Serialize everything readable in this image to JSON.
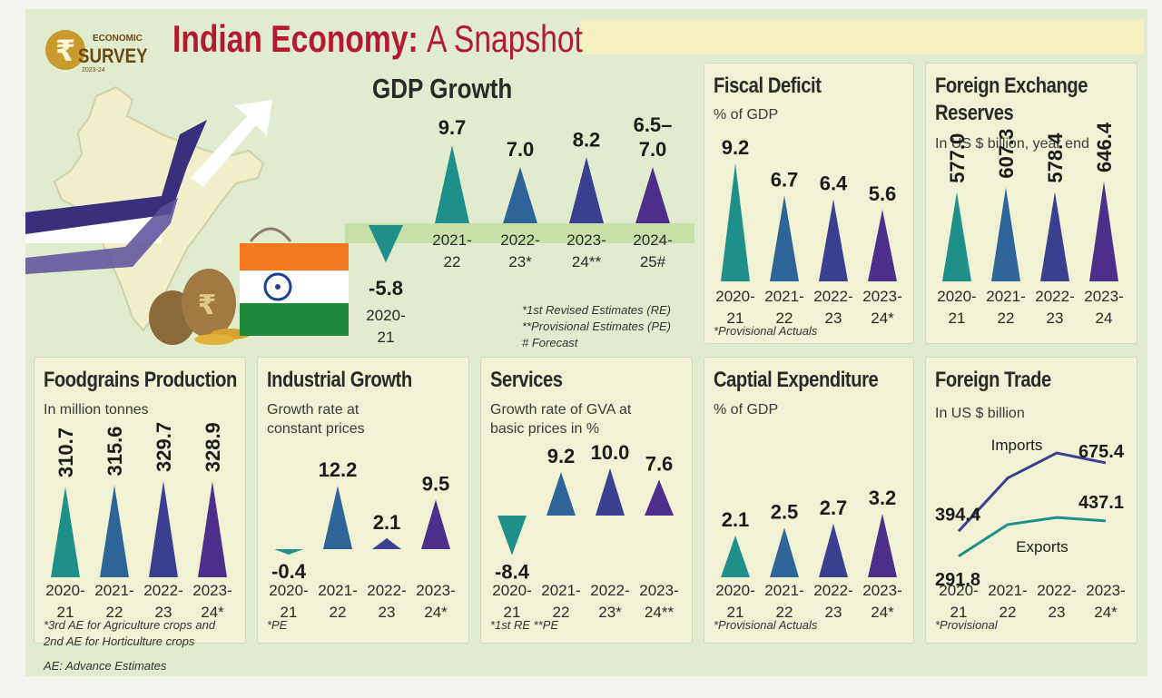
{
  "header": {
    "title_main": "Indian Economy:",
    "title_light": "A Snapshot",
    "logo_line1": "ECONOMIC",
    "logo_line2": "SURVEY",
    "logo_line3": "2023-24"
  },
  "colors": {
    "teal": "#1f8f8a",
    "blue": "#2d6598",
    "indigo": "#3a3f8f",
    "purple": "#4c2f8a",
    "title_red": "#b31a2e"
  },
  "gdp": {
    "title": "GDP Growth",
    "notes": [
      "*1st Revised Estimates (RE)",
      "**Provisional Estimates (PE)",
      "# Forecast"
    ],
    "chart_data": {
      "type": "bar",
      "title": "GDP Growth",
      "categories": [
        [
          "2020-",
          "21"
        ],
        [
          "2021-",
          "22"
        ],
        [
          "2022-",
          "23*"
        ],
        [
          "2023-",
          "24**"
        ],
        [
          "2024-",
          "25#"
        ]
      ],
      "values": [
        -5.8,
        9.7,
        7.0,
        8.2,
        7.0
      ],
      "labels": [
        [
          "-5.8"
        ],
        [
          "9.7"
        ],
        [
          "7.0"
        ],
        [
          "8.2"
        ],
        [
          "6.5–",
          "7.0"
        ]
      ]
    }
  },
  "fiscal": {
    "title": "Fiscal Deficit",
    "subtitle": [
      "% of GDP"
    ],
    "note": [
      "*Provisional Actuals"
    ],
    "chart_data": {
      "type": "bar",
      "title": "Fiscal Deficit",
      "categories": [
        [
          "2020-",
          "21"
        ],
        [
          "2021-",
          "22"
        ],
        [
          "2022-",
          "23"
        ],
        [
          "2023-",
          "24*"
        ]
      ],
      "values": [
        9.2,
        6.7,
        6.4,
        5.6
      ],
      "labels": [
        [
          "9.2"
        ],
        [
          "6.7"
        ],
        [
          "6.4"
        ],
        [
          "5.6"
        ]
      ]
    }
  },
  "forex": {
    "title": [
      "Foreign Exchange",
      "Reserves"
    ],
    "subtitle": [
      "In US $ billion, year end"
    ],
    "chart_data": {
      "type": "bar",
      "title": "Foreign Exchange Reserves",
      "categories": [
        [
          "2020-",
          "21"
        ],
        [
          "2021-",
          "22"
        ],
        [
          "2022-",
          "23"
        ],
        [
          "2023-",
          "24"
        ]
      ],
      "values": [
        577.0,
        607.3,
        578.4,
        646.4
      ],
      "labels": [
        [
          "577.0"
        ],
        [
          "607.3"
        ],
        [
          "578.4"
        ],
        [
          "646.4"
        ]
      ]
    }
  },
  "foodgrains": {
    "title": "Foodgrains Production",
    "subtitle": [
      "In million tonnes"
    ],
    "note": [
      "*3rd AE for Agriculture crops and",
      "2nd AE for Horticulture crops",
      "AE: Advance Estimates"
    ],
    "chart_data": {
      "type": "bar",
      "title": "Foodgrains Production",
      "categories": [
        [
          "2020-",
          "21"
        ],
        [
          "2021-",
          "22"
        ],
        [
          "2022-",
          "23"
        ],
        [
          "2023-",
          "24*"
        ]
      ],
      "values": [
        310.7,
        315.6,
        329.7,
        328.9
      ],
      "labels": [
        [
          "310.7"
        ],
        [
          "315.6"
        ],
        [
          "329.7"
        ],
        [
          "328.9"
        ]
      ]
    }
  },
  "industrial": {
    "title": "Industrial Growth",
    "subtitle": [
      "Growth rate at",
      "constant prices"
    ],
    "note": [
      "*PE"
    ],
    "chart_data": {
      "type": "bar",
      "title": "Industrial Growth",
      "categories": [
        [
          "2020-",
          "21"
        ],
        [
          "2021-",
          "22"
        ],
        [
          "2022-",
          "23"
        ],
        [
          "2023-",
          "24*"
        ]
      ],
      "values": [
        -0.4,
        12.2,
        2.1,
        9.5
      ],
      "labels": [
        [
          "-0.4"
        ],
        [
          "12.2"
        ],
        [
          "2.1"
        ],
        [
          "9.5"
        ]
      ]
    }
  },
  "services": {
    "title": "Services",
    "subtitle": [
      "Growth rate of GVA at",
      "basic prices in %"
    ],
    "note": [
      "*1st RE  **PE"
    ],
    "chart_data": {
      "type": "bar",
      "title": "Services",
      "categories": [
        [
          "2020-",
          "21"
        ],
        [
          "2021-",
          "22"
        ],
        [
          "2022-",
          "23*"
        ],
        [
          "2023-",
          "24**"
        ]
      ],
      "values": [
        -8.4,
        9.2,
        10.0,
        7.6
      ],
      "labels": [
        [
          "-8.4"
        ],
        [
          "9.2"
        ],
        [
          "10.0"
        ],
        [
          "7.6"
        ]
      ]
    }
  },
  "capex": {
    "title": "Captial Expenditure",
    "subtitle": [
      "% of GDP"
    ],
    "note": [
      "*Provisional Actuals"
    ],
    "chart_data": {
      "type": "bar",
      "title": "Captial Expenditure",
      "categories": [
        [
          "2020-",
          "21"
        ],
        [
          "2021-",
          "22"
        ],
        [
          "2022-",
          "23"
        ],
        [
          "2023-",
          "24*"
        ]
      ],
      "values": [
        2.1,
        2.5,
        2.7,
        3.2
      ],
      "labels": [
        [
          "2.1"
        ],
        [
          "2.5"
        ],
        [
          "2.7"
        ],
        [
          "3.2"
        ]
      ]
    }
  },
  "trade": {
    "title": "Foreign Trade",
    "subtitle": [
      "In US $ billion"
    ],
    "note": [
      "*Provisional"
    ],
    "chart_data": {
      "type": "line",
      "title": "Foreign Trade",
      "categories": [
        [
          "2020-",
          "21"
        ],
        [
          "2021-",
          "22"
        ],
        [
          "2022-",
          "23"
        ],
        [
          "2023-",
          "24*"
        ]
      ],
      "ylim": [
        250,
        720
      ],
      "series": [
        {
          "name": "Imports",
          "values": [
            394.4,
            613.0,
            716.0,
            675.4
          ],
          "end_labels": [
            "394.4",
            "675.4"
          ]
        },
        {
          "name": "Exports",
          "values": [
            291.8,
            422.0,
            451.0,
            437.1
          ],
          "end_labels": [
            "291.8",
            "437.1"
          ]
        }
      ]
    }
  }
}
